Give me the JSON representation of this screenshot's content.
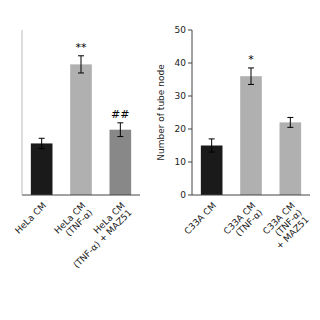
{
  "chart_data": [
    {
      "type": "bar",
      "categories": [
        "HeLa CM",
        "HeLa CM\n(TNF-α)",
        "HeLa CM\n(TNF-α) + MAZ51"
      ],
      "values": [
        15,
        38,
        19
      ],
      "errors": [
        1.5,
        2.5,
        2.0
      ],
      "colors": [
        "#1a1a1a",
        "#b0b0b0",
        "#888888"
      ],
      "annotations": [
        {
          "text": "**",
          "x": "HeLa CM\n(TNF-α)"
        },
        {
          "text": "##",
          "x": "HeLa CM\n(TNF-α) + MAZ51"
        }
      ],
      "ylim": [
        0,
        48
      ],
      "tick_labels": "x"
    },
    {
      "type": "bar",
      "categories": [
        "C33A CM",
        "C33A CM\n(TNF-α)",
        "C33A CM\n(TNF-α)\n+ MAZ51"
      ],
      "values": [
        15,
        36,
        22
      ],
      "errors": [
        2.0,
        2.5,
        1.5
      ],
      "colors": [
        "#1a1a1a",
        "#b0b0b0",
        "#b0b0b0"
      ],
      "annotations": [
        {
          "text": "*",
          "x": "C33A CM\n(TNF-α)"
        }
      ],
      "ylabel": "Number of tube node",
      "ylim": [
        0,
        50
      ],
      "yticks": [
        0,
        10,
        20,
        30,
        40,
        50
      ]
    }
  ]
}
